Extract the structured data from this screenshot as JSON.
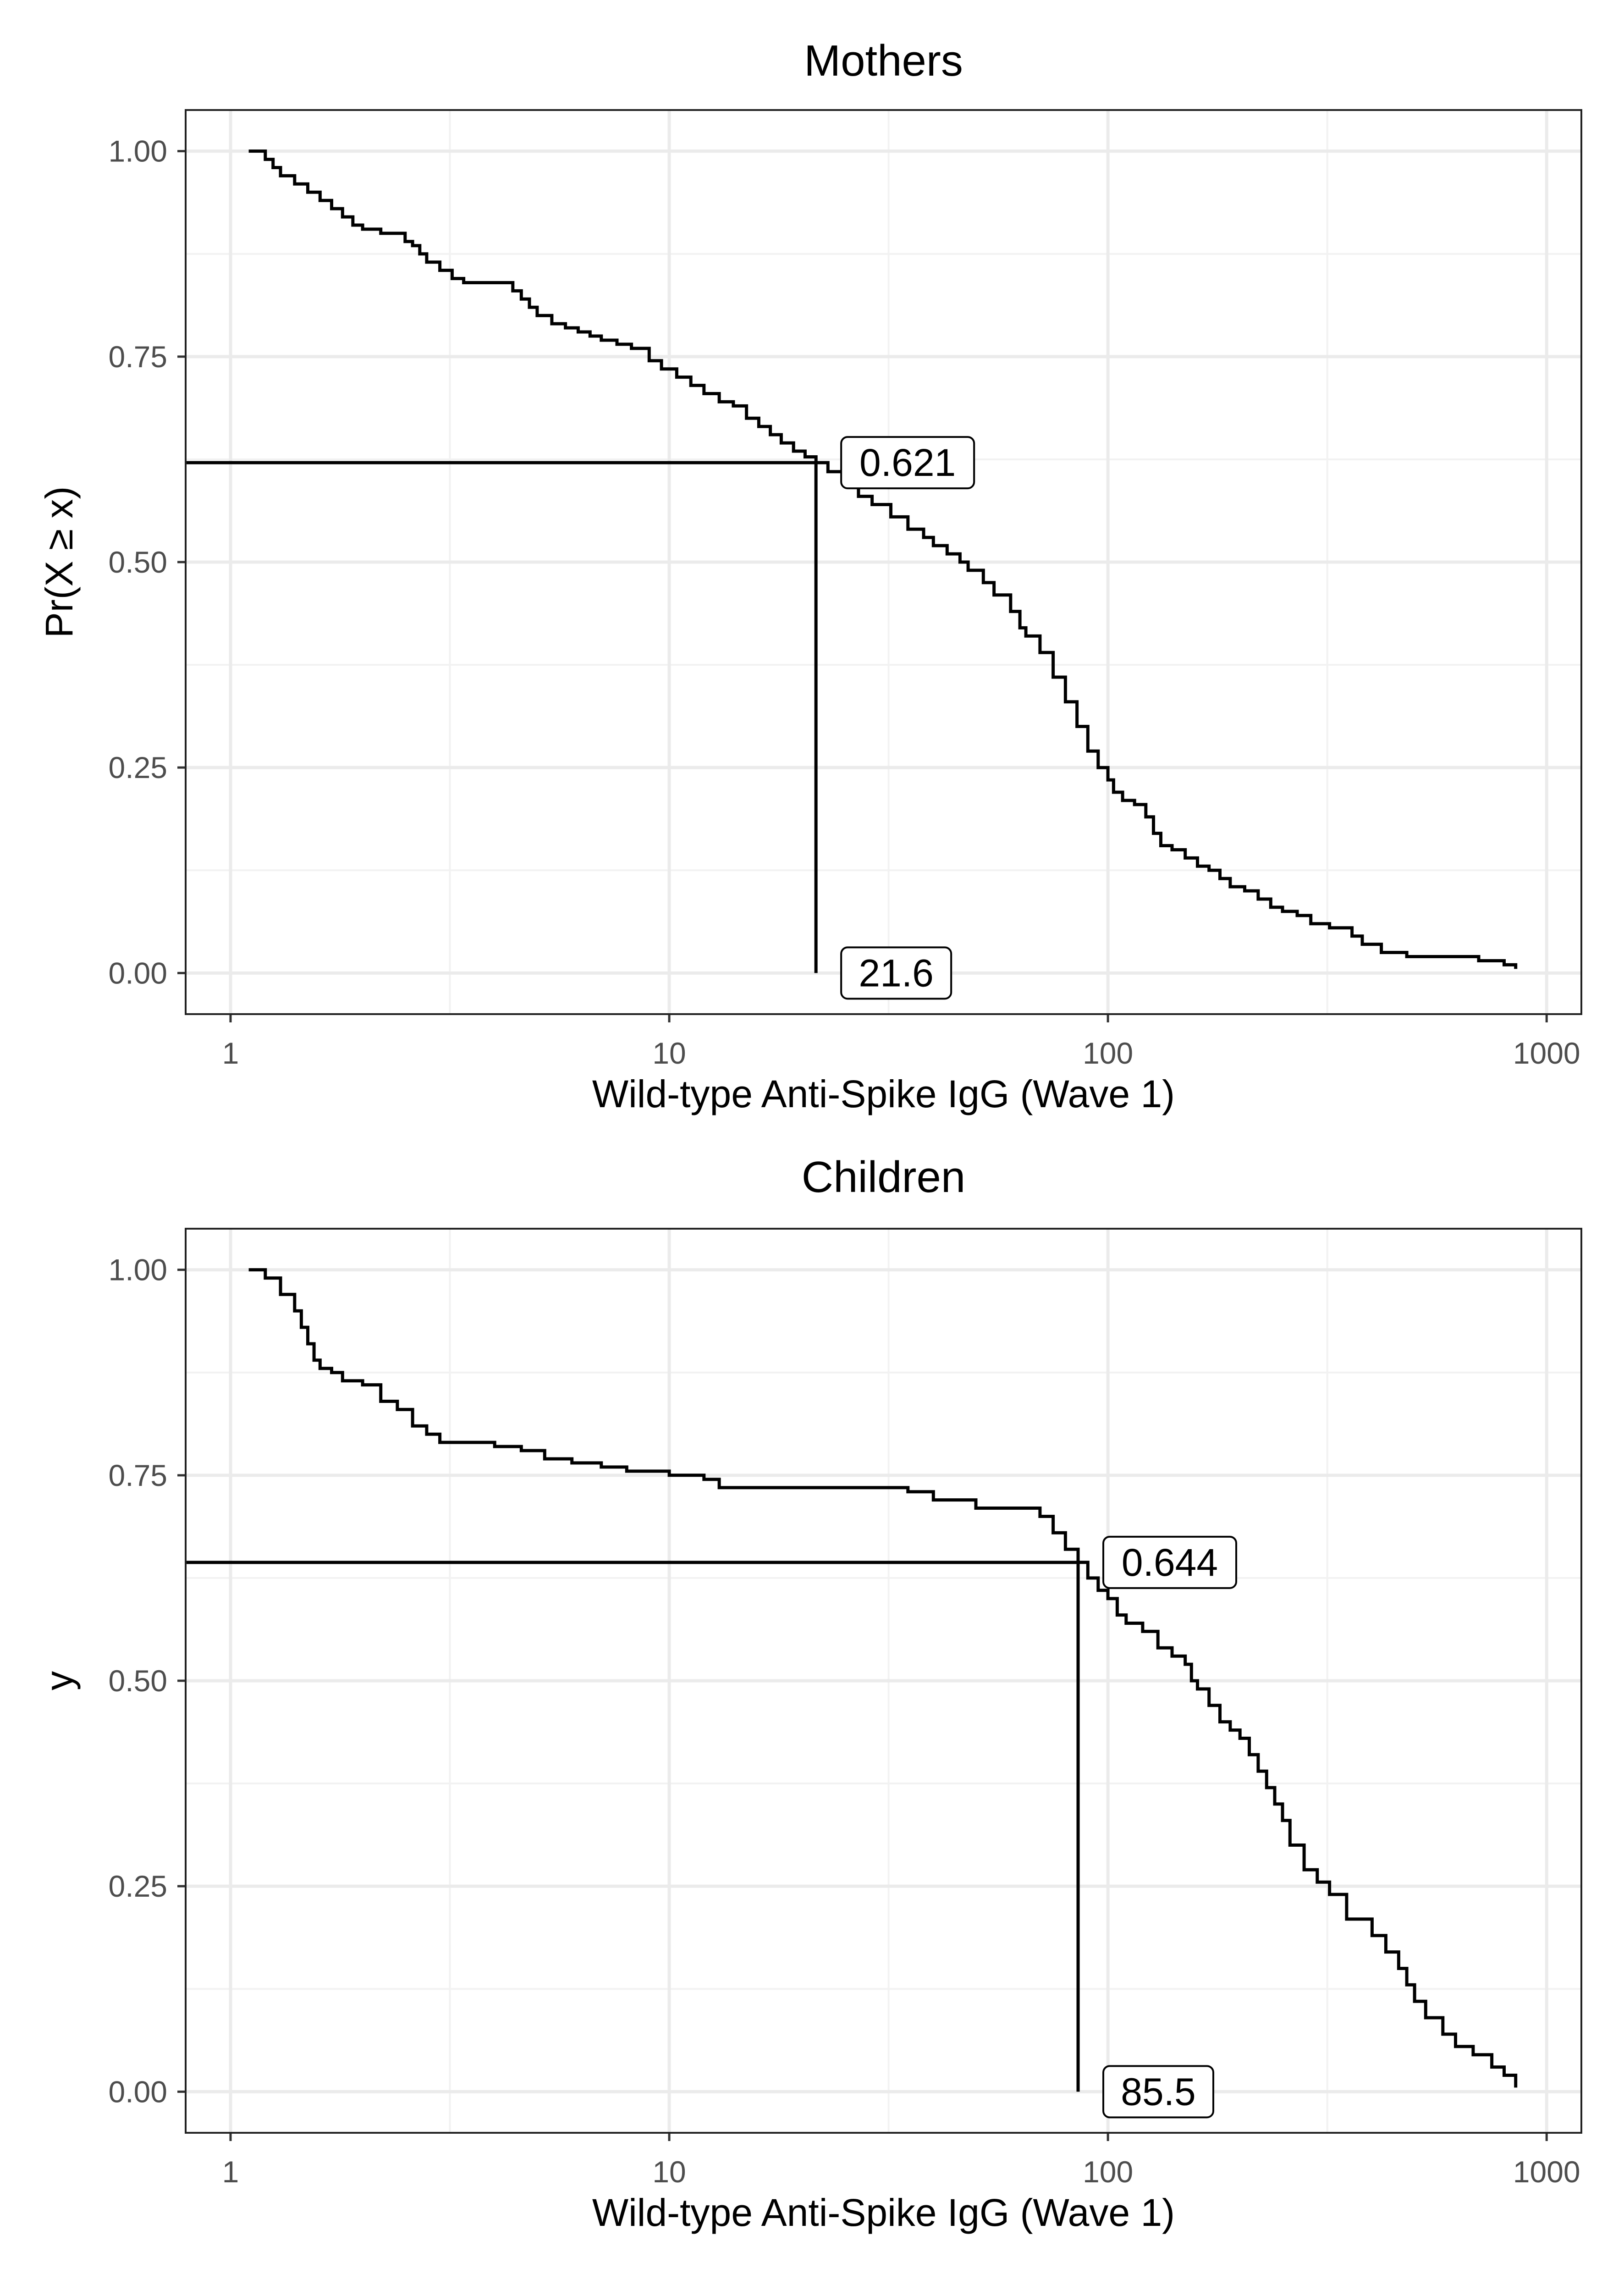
{
  "chart_data": [
    {
      "type": "line",
      "title": "Mothers",
      "xlabel": "Wild-type Anti-Spike IgG (Wave 1)",
      "ylabel": "Pr(X ≥ x)",
      "x_scale": "log10",
      "xlim": [
        0.79,
        1200
      ],
      "ylim": [
        -0.05,
        1.05
      ],
      "x_ticks": [
        "1",
        "10",
        "100",
        "1000"
      ],
      "y_ticks": [
        "0.00",
        "0.25",
        "0.50",
        "0.75",
        "1.00"
      ],
      "grid": true,
      "series": [
        {
          "x": [
            1.1,
            1.2,
            1.25,
            1.3,
            1.4,
            1.5,
            1.6,
            1.7,
            1.8,
            1.9,
            2.0,
            2.2,
            2.5,
            2.6,
            2.7,
            2.8,
            3.0,
            3.2,
            3.4,
            4.4,
            4.6,
            4.8,
            5.0,
            5.4,
            5.8,
            6.2,
            6.6,
            7.0,
            7.6,
            8.2,
            9.0,
            9.6,
            10.4,
            11.2,
            12.0,
            13.0,
            14.0,
            15.0,
            16.0,
            17.0,
            18.0,
            19.2,
            20.4,
            21.6,
            23,
            25,
            27,
            29,
            32,
            35,
            38,
            40,
            43,
            46,
            48,
            52,
            55,
            60,
            63,
            65,
            70,
            75,
            80,
            85,
            90,
            95,
            100,
            103,
            108,
            115,
            122,
            127,
            132,
            140,
            150,
            160,
            170,
            180,
            190,
            205,
            220,
            235,
            250,
            270,
            290,
            320,
            360,
            380,
            420,
            480,
            560,
            700,
            800,
            850
          ],
          "y": [
            1.0,
            0.99,
            0.98,
            0.97,
            0.96,
            0.95,
            0.94,
            0.93,
            0.92,
            0.91,
            0.905,
            0.9,
            0.89,
            0.885,
            0.875,
            0.865,
            0.855,
            0.845,
            0.84,
            0.83,
            0.82,
            0.81,
            0.8,
            0.79,
            0.785,
            0.78,
            0.775,
            0.77,
            0.765,
            0.76,
            0.745,
            0.735,
            0.725,
            0.715,
            0.705,
            0.695,
            0.69,
            0.675,
            0.665,
            0.655,
            0.645,
            0.635,
            0.628,
            0.621,
            0.61,
            0.595,
            0.58,
            0.57,
            0.555,
            0.54,
            0.53,
            0.52,
            0.51,
            0.5,
            0.49,
            0.475,
            0.46,
            0.44,
            0.42,
            0.41,
            0.39,
            0.36,
            0.33,
            0.3,
            0.27,
            0.25,
            0.235,
            0.22,
            0.21,
            0.205,
            0.19,
            0.17,
            0.155,
            0.15,
            0.14,
            0.13,
            0.125,
            0.115,
            0.105,
            0.1,
            0.09,
            0.08,
            0.075,
            0.07,
            0.06,
            0.055,
            0.045,
            0.035,
            0.025,
            0.02,
            0.02,
            0.015,
            0.01,
            0.005
          ]
        }
      ],
      "annotations": {
        "x_value": 21.6,
        "y_value": 0.621,
        "x_label": "21.6",
        "y_label": "0.621"
      }
    },
    {
      "type": "line",
      "title": "Children",
      "xlabel": "Wild-type Anti-Spike IgG (Wave 1)",
      "ylabel": "y",
      "x_scale": "log10",
      "xlim": [
        0.79,
        1200
      ],
      "ylim": [
        -0.05,
        1.05
      ],
      "x_ticks": [
        "1",
        "10",
        "100",
        "1000"
      ],
      "y_ticks": [
        "0.00",
        "0.25",
        "0.50",
        "0.75",
        "1.00"
      ],
      "grid": true,
      "series": [
        {
          "x": [
            1.1,
            1.2,
            1.3,
            1.4,
            1.45,
            1.5,
            1.55,
            1.6,
            1.7,
            1.8,
            2.0,
            2.2,
            2.4,
            2.6,
            2.8,
            3.0,
            4.0,
            4.6,
            5.2,
            6.0,
            7.0,
            8.0,
            10.0,
            12.0,
            13.0,
            15.0,
            20.0,
            30.0,
            35.0,
            40.0,
            50.0,
            70.0,
            75.0,
            80.0,
            85.5,
            90,
            95,
            100,
            105,
            110,
            120,
            130,
            140,
            150,
            155,
            160,
            170,
            180,
            190,
            200,
            210,
            220,
            230,
            240,
            250,
            260,
            280,
            300,
            320,
            350,
            400,
            430,
            460,
            480,
            500,
            530,
            580,
            620,
            680,
            750,
            800,
            850
          ],
          "y": [
            1.0,
            0.99,
            0.97,
            0.95,
            0.93,
            0.91,
            0.89,
            0.88,
            0.875,
            0.865,
            0.86,
            0.84,
            0.83,
            0.81,
            0.8,
            0.79,
            0.785,
            0.78,
            0.77,
            0.765,
            0.76,
            0.755,
            0.75,
            0.745,
            0.735,
            0.735,
            0.735,
            0.735,
            0.73,
            0.72,
            0.71,
            0.7,
            0.68,
            0.66,
            0.644,
            0.625,
            0.61,
            0.6,
            0.58,
            0.57,
            0.56,
            0.54,
            0.53,
            0.52,
            0.5,
            0.49,
            0.47,
            0.45,
            0.44,
            0.43,
            0.41,
            0.39,
            0.37,
            0.35,
            0.33,
            0.3,
            0.27,
            0.255,
            0.24,
            0.21,
            0.19,
            0.17,
            0.15,
            0.13,
            0.11,
            0.09,
            0.07,
            0.055,
            0.045,
            0.03,
            0.02,
            0.005
          ]
        }
      ],
      "annotations": {
        "x_value": 85.5,
        "y_value": 0.644,
        "x_label": "85.5",
        "y_label": "0.644"
      }
    }
  ]
}
